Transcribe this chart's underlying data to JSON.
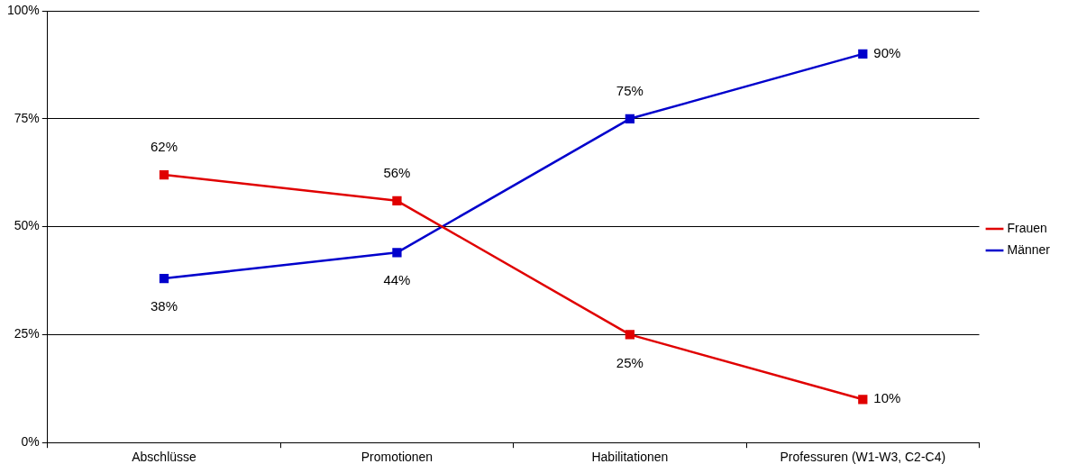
{
  "chart_data": {
    "type": "line",
    "categories": [
      "Abschlüsse",
      "Promotionen",
      "Habilitationen",
      "Professuren (W1-W3, C2-C4)"
    ],
    "series": [
      {
        "name": "Frauen",
        "color": "#e00000",
        "values": [
          62,
          56,
          25,
          10
        ],
        "value_labels": [
          "62%",
          "56%",
          "25%",
          "10%"
        ]
      },
      {
        "name": "Männer",
        "color": "#0000cc",
        "values": [
          38,
          44,
          75,
          90
        ],
        "value_labels": [
          "38%",
          "44%",
          "75%",
          "90%"
        ]
      }
    ],
    "ylim": [
      0,
      100
    ],
    "yticks": [
      {
        "value": 0,
        "label": "0%"
      },
      {
        "value": 25,
        "label": "25%"
      },
      {
        "value": 50,
        "label": "50%"
      },
      {
        "value": 75,
        "label": "75%"
      },
      {
        "value": 100,
        "label": "100%"
      }
    ],
    "grid": "y",
    "legend": "right",
    "marker": "square",
    "line_style": "solid"
  }
}
